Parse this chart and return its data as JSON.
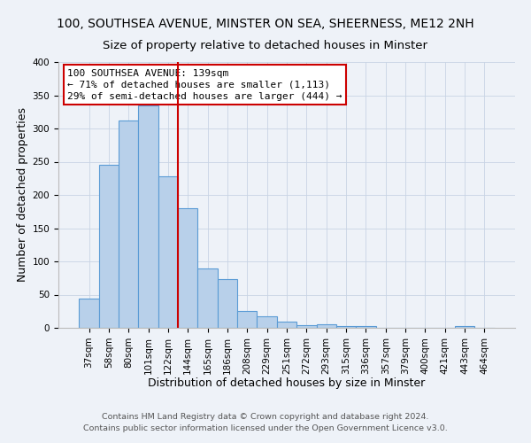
{
  "title": "100, SOUTHSEA AVENUE, MINSTER ON SEA, SHEERNESS, ME12 2NH",
  "subtitle": "Size of property relative to detached houses in Minster",
  "xlabel": "Distribution of detached houses by size in Minster",
  "ylabel": "Number of detached properties",
  "bar_labels": [
    "37sqm",
    "58sqm",
    "80sqm",
    "101sqm",
    "122sqm",
    "144sqm",
    "165sqm",
    "186sqm",
    "208sqm",
    "229sqm",
    "251sqm",
    "272sqm",
    "293sqm",
    "315sqm",
    "336sqm",
    "357sqm",
    "379sqm",
    "400sqm",
    "421sqm",
    "443sqm",
    "464sqm"
  ],
  "bar_values": [
    44,
    245,
    312,
    335,
    228,
    180,
    90,
    74,
    26,
    17,
    10,
    4,
    5,
    3,
    3,
    0,
    0,
    0,
    0,
    3,
    0
  ],
  "bar_color": "#b8d0ea",
  "bar_edge_color": "#5b9bd5",
  "vline_color": "#cc0000",
  "vline_pos": 4.5,
  "ylim": [
    0,
    400
  ],
  "yticks": [
    0,
    50,
    100,
    150,
    200,
    250,
    300,
    350,
    400
  ],
  "annotation_title": "100 SOUTHSEA AVENUE: 139sqm",
  "annotation_line1": "← 71% of detached houses are smaller (1,113)",
  "annotation_line2": "29% of semi-detached houses are larger (444) →",
  "footer1": "Contains HM Land Registry data © Crown copyright and database right 2024.",
  "footer2": "Contains public sector information licensed under the Open Government Licence v3.0.",
  "bg_color": "#eef2f8",
  "title_fontsize": 10,
  "subtitle_fontsize": 9.5,
  "xlabel_fontsize": 9,
  "ylabel_fontsize": 9,
  "tick_fontsize": 7.5,
  "annotation_fontsize": 8,
  "footer_fontsize": 6.8,
  "annotation_box_facecolor": "#ffffff",
  "annotation_box_edgecolor": "#cc0000",
  "grid_color": "#c8d4e4"
}
